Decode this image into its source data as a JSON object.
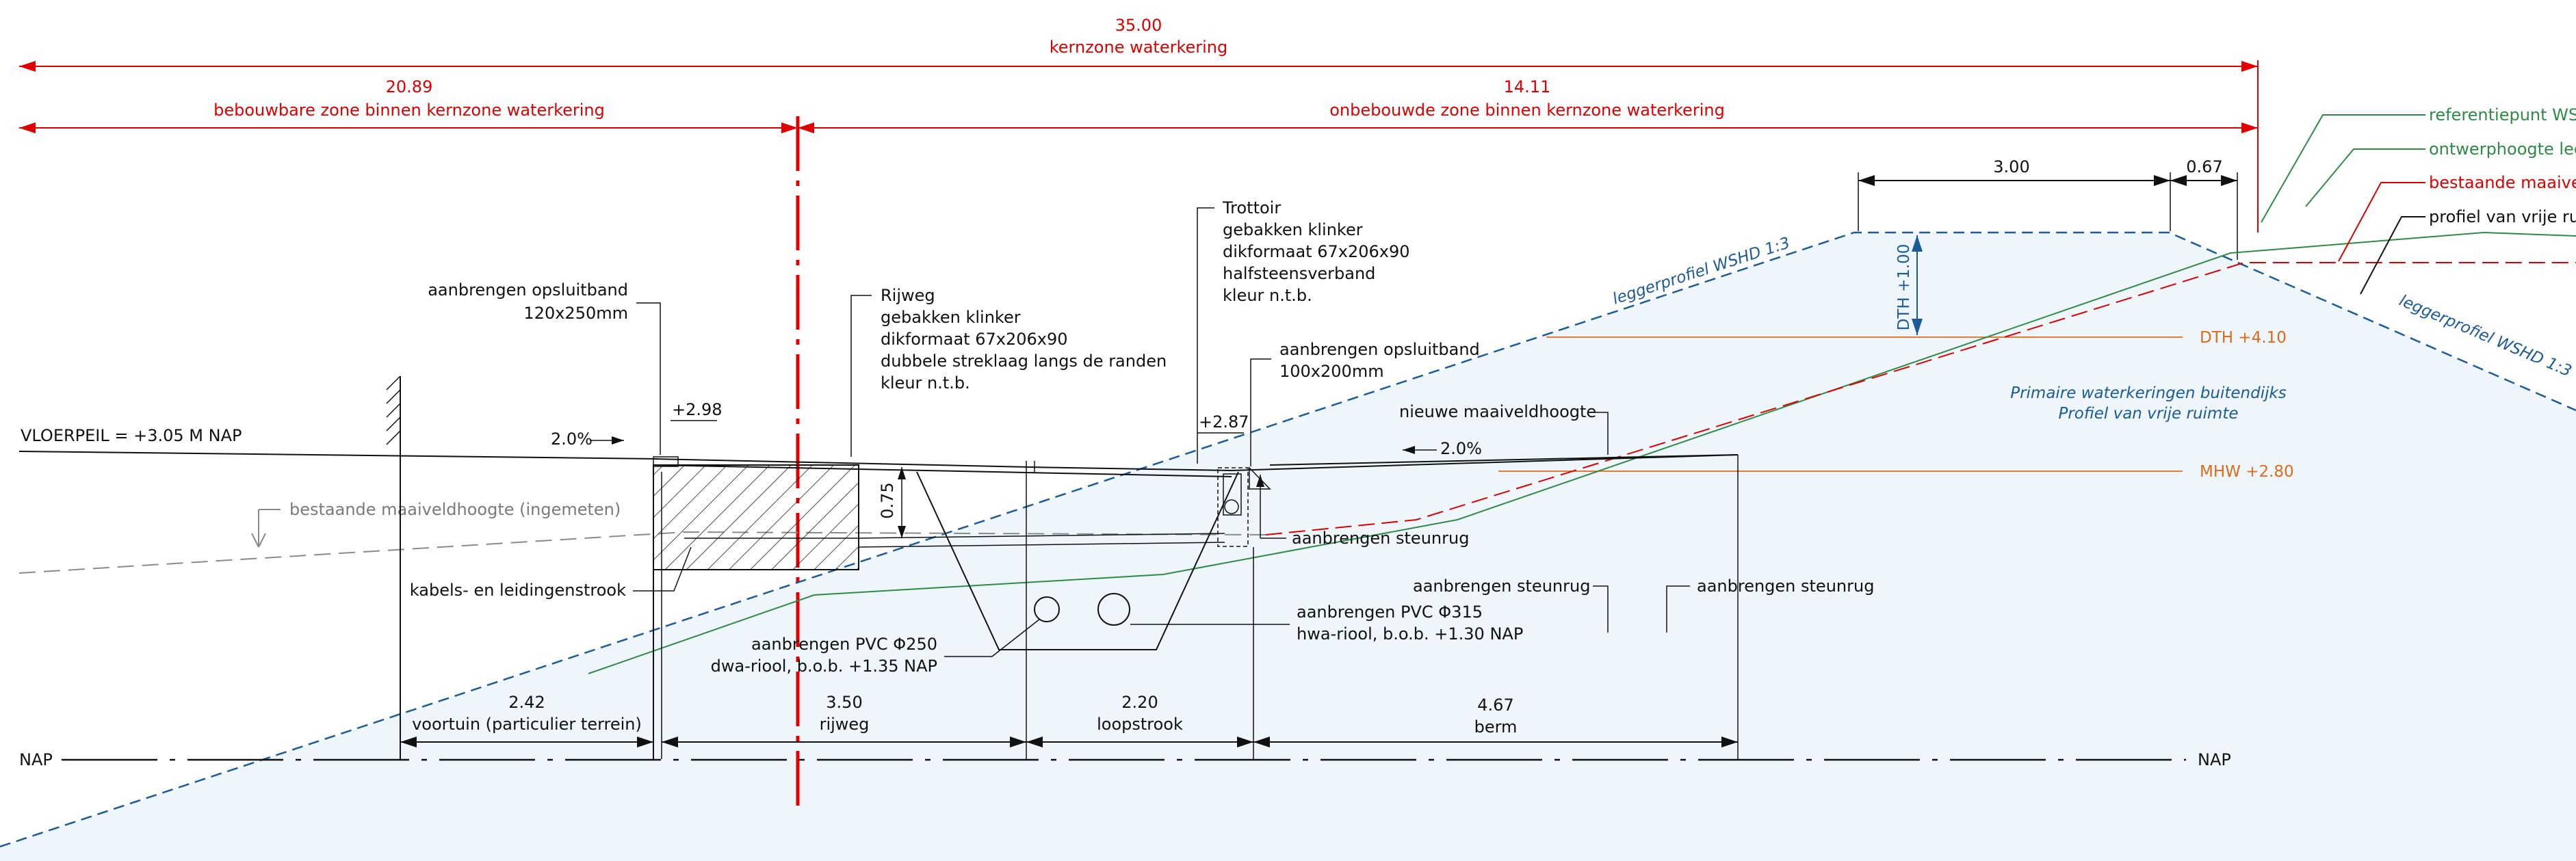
{
  "zones": {
    "total_value": "35.00",
    "total_label": "kernzone waterkering",
    "left_value": "20.89",
    "left_label": "bebouwbare zone binnen kernzone waterkering",
    "right_value": "14.11",
    "right_label": "onbebouwde zone binnen kernzone waterkering"
  },
  "crest": {
    "width": "3.00",
    "offset": "0.67",
    "dth": "DTH +1.00"
  },
  "legend": {
    "referentiepunt": "referentiepunt WS",
    "ontwerphoogte": "ontwerphoogte leg",
    "bestaande": "bestaande maaivel",
    "profiel": "profiel van vrije ru"
  },
  "profile": {
    "leggerprofiel_left": "leggerprofiel WSHD 1:3",
    "leggerprofiel_right": "leggerprofiel WSHD 1:3",
    "primaire_line1": "Primaire waterkeringen buitendijks",
    "primaire_line2": "Profiel van vrije ruimte",
    "dth_level": "DTH +4.10",
    "mhw_level": "MHW +2.80"
  },
  "annotations": {
    "opsluitband_left_l1": "aanbrengen opsluitband",
    "opsluitband_left_l2": "120x250mm",
    "rijweg_l1": "Rijweg",
    "rijweg_l2": "gebakken klinker",
    "rijweg_l3": "dikformaat 67x206x90",
    "rijweg_l4": "dubbele streklaag langs de randen",
    "rijweg_l5": "kleur n.t.b.",
    "trottoir_l1": "Trottoir",
    "trottoir_l2": "gebakken klinker",
    "trottoir_l3": "dikformaat 67x206x90",
    "trottoir_l4": "halfsteensverband",
    "trottoir_l5": "kleur n.t.b.",
    "opsluitband_right_l1": "aanbrengen opsluitband",
    "opsluitband_right_l2": "100x200mm",
    "vloerpeil": "VLOERPEIL = +3.05 M NAP",
    "slope_left": "2.0%",
    "slope_right": "2.0%",
    "level_298": "+2.98",
    "level_287": "+2.87",
    "nieuwe_maaiveld": "nieuwe maaiveldhoogte",
    "bestaande_ingemeten": "bestaande maaiveldhoogte (ingemeten)",
    "depth_075": "0.75",
    "steunrug_1": "aanbrengen steunrug",
    "steunrug_2": "aanbrengen steunrug",
    "steunrug_3": "aanbrengen steunrug",
    "kabels": "kabels- en leidingenstrook",
    "pvc250_l1": "aanbrengen PVC Φ250",
    "pvc250_l2": "dwa-riool, b.o.b. +1.35 NAP",
    "pvc315_l1": "aanbrengen PVC Φ315",
    "pvc315_l2": "hwa-riool, b.o.b. +1.30 NAP",
    "nap_left": "NAP",
    "nap_right": "NAP"
  },
  "bottom_dims": [
    {
      "value": "2.42",
      "label": "voortuin (particulier terrein)"
    },
    {
      "value": "3.50",
      "label": "rijweg"
    },
    {
      "value": "2.20",
      "label": "loopstrook"
    },
    {
      "value": "4.67",
      "label": "berm"
    }
  ],
  "colors": {
    "dimension_red": "#e00000",
    "legger_blue": "#1b5b9a",
    "maaiveld_green": "#2e8b46",
    "level_orange": "#e06a1a",
    "profile_fill": "#eef6fb"
  }
}
